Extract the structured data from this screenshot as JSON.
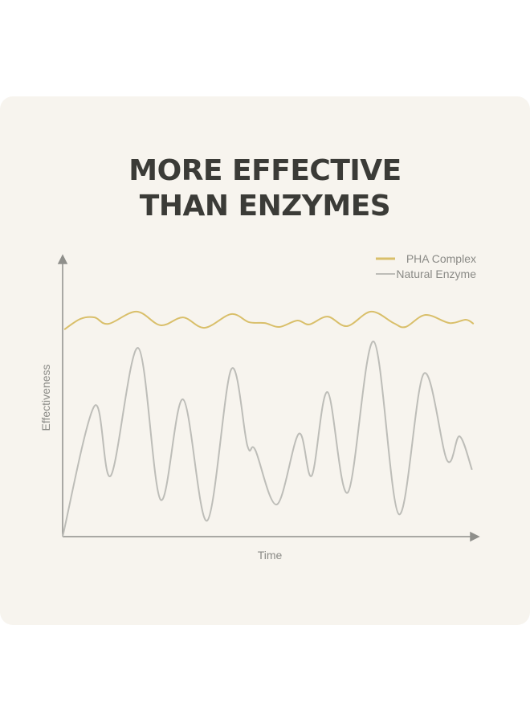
{
  "chart_data": {
    "type": "line",
    "title": [
      "MORE EFFECTIVE",
      "THAN ENZYMES"
    ],
    "x_label": "Time",
    "y_label": "Effectiveness",
    "xlim": [
      0,
      100
    ],
    "ylim": [
      0,
      100
    ],
    "grid": false,
    "legend": "upper right",
    "series": [
      {
        "name": "PHA Complex",
        "color": "#d9bf6a",
        "x": [
          0.4,
          4.3,
          7.7,
          11.0,
          17.8,
          23.6,
          29.0,
          34.2,
          40.6,
          44.9,
          48.7,
          52.2,
          56.5,
          59.4,
          63.8,
          68.5,
          74.3,
          79.7,
          82.6,
          87.4,
          93.2,
          97.1,
          99.0
        ],
        "values": [
          74.1,
          77.9,
          78.4,
          76.1,
          80.5,
          75.6,
          78.4,
          74.7,
          79.6,
          76.7,
          76.4,
          75.0,
          77.3,
          75.9,
          78.7,
          75.3,
          80.5,
          76.4,
          75.0,
          79.3,
          76.4,
          77.6,
          76.1
        ]
      },
      {
        "name": "Natural Enzyme",
        "color": "#bdbdb8",
        "x": [
          0,
          7.7,
          11.6,
          18.2,
          23.6,
          29.0,
          34.8,
          40.6,
          44.5,
          46.4,
          51.6,
          56.9,
          60.0,
          63.8,
          68.7,
          74.9,
          81.0,
          87.0,
          92.6,
          95.6,
          98.6
        ],
        "values": [
          0,
          46.8,
          21.8,
          67.5,
          13.2,
          49.1,
          5.7,
          59.8,
          32.5,
          31.0,
          11.5,
          36.8,
          21.8,
          51.7,
          15.8,
          69.8,
          8.0,
          58.3,
          27.3,
          35.9,
          23.9
        ]
      }
    ]
  }
}
